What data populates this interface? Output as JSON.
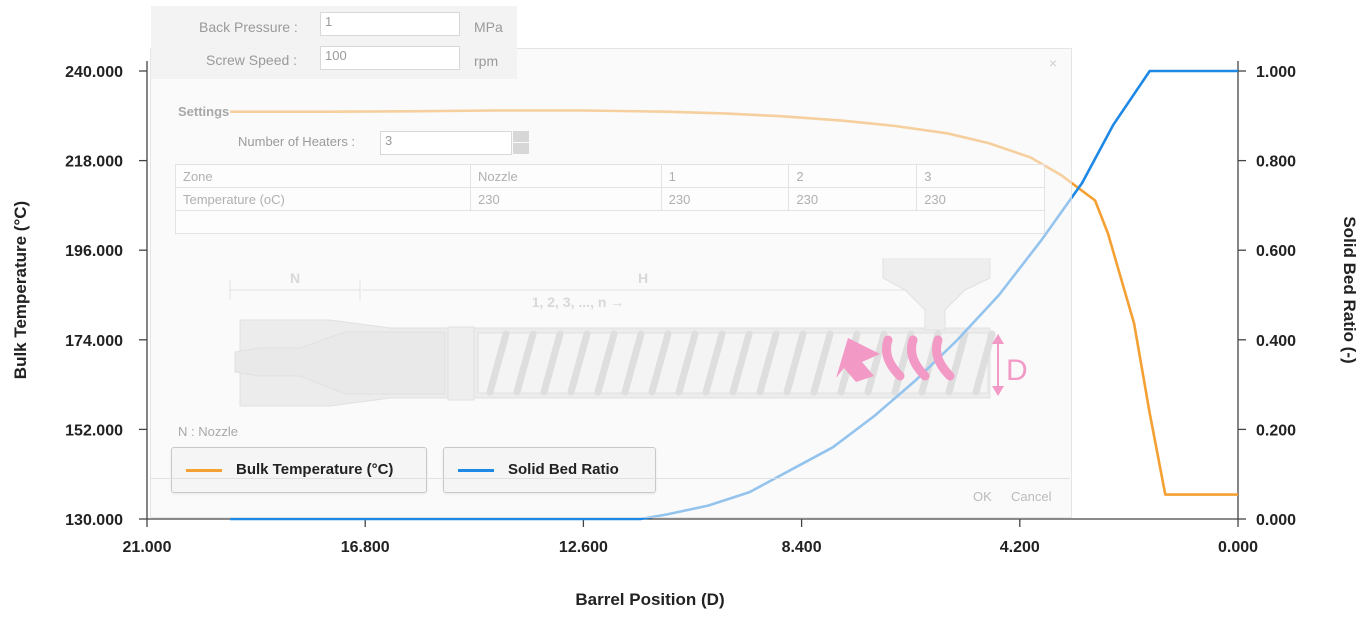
{
  "chart_data": {
    "type": "line",
    "xlabel": "Barrel Position (D)",
    "ylabel_left": "Bulk Temperature (°C)",
    "ylabel_right": "Solid Bed Ratio (-)",
    "x_reversed": true,
    "xlim": [
      21.0,
      0.0
    ],
    "ylim_left": [
      130.0,
      240.0
    ],
    "ylim_right": [
      0.0,
      1.0
    ],
    "x_ticks": [
      "21.000",
      "16.800",
      "12.600",
      "8.400",
      "4.200",
      "0.000"
    ],
    "y_left_ticks": [
      "130.000",
      "152.000",
      "174.000",
      "196.000",
      "218.000",
      "240.000"
    ],
    "y_right_ticks": [
      "0.000",
      "0.200",
      "0.400",
      "0.600",
      "0.800",
      "1.000"
    ],
    "grid": false,
    "legend_placement": "bottom-left",
    "series": [
      {
        "name": "Bulk Temperature (°C)",
        "axis": "left",
        "color": "#F5A033",
        "x": [
          19.4,
          17.5,
          16.0,
          14.3,
          12.6,
          11.0,
          9.9,
          8.8,
          7.6,
          6.6,
          5.6,
          4.8,
          4.0,
          3.4,
          2.75,
          2.5,
          2.0,
          1.7,
          1.4,
          0.0
        ],
        "y": [
          230.0,
          230.0,
          230.1,
          230.3,
          230.3,
          230.0,
          229.6,
          228.9,
          227.8,
          226.5,
          224.7,
          222.3,
          218.8,
          214.4,
          208.2,
          200.0,
          178.0,
          156.0,
          136.0,
          136.0
        ]
      },
      {
        "name": "Solid Bed Ratio",
        "axis": "right",
        "color": "#1E88E5",
        "x": [
          19.4,
          14.0,
          12.6,
          11.5,
          11.0,
          10.2,
          9.4,
          8.6,
          7.8,
          7.0,
          6.2,
          5.4,
          4.6,
          3.8,
          3.0,
          2.4,
          1.7,
          0.0
        ],
        "y": [
          0.0,
          0.0,
          0.0,
          0.0,
          0.01,
          0.03,
          0.06,
          0.11,
          0.16,
          0.23,
          0.31,
          0.4,
          0.5,
          0.62,
          0.75,
          0.88,
          1.0,
          1.0
        ]
      }
    ]
  },
  "overlay": {
    "back_pressure_label": "Back Pressure :",
    "back_pressure_value": "1",
    "back_pressure_unit": "MPa",
    "screw_speed_label": "Screw Speed :",
    "screw_speed_value": "100",
    "screw_speed_unit": "rpm",
    "close_glyph": "×",
    "settings_title": "Settings",
    "heaters_label": "Number of Heaters :",
    "heaters_value": "3",
    "table_header": [
      "Zone",
      "Nozzle",
      "1",
      "2",
      "3"
    ],
    "table_row": [
      "Temperature (oC)",
      "230",
      "230",
      "230",
      "230"
    ],
    "diagram_label_n": "N",
    "diagram_label_h": "H",
    "diagram_sequence": "1, 2, 3, ..., n",
    "diagram_label_d": "D",
    "nozzle_note": "N : Nozzle",
    "ok_label": "OK",
    "cancel_label": "Cancel",
    "arrow_color": "#F0288C",
    "icons": [
      "spinner-up-icon",
      "spinner-down-icon",
      "close-icon"
    ]
  }
}
